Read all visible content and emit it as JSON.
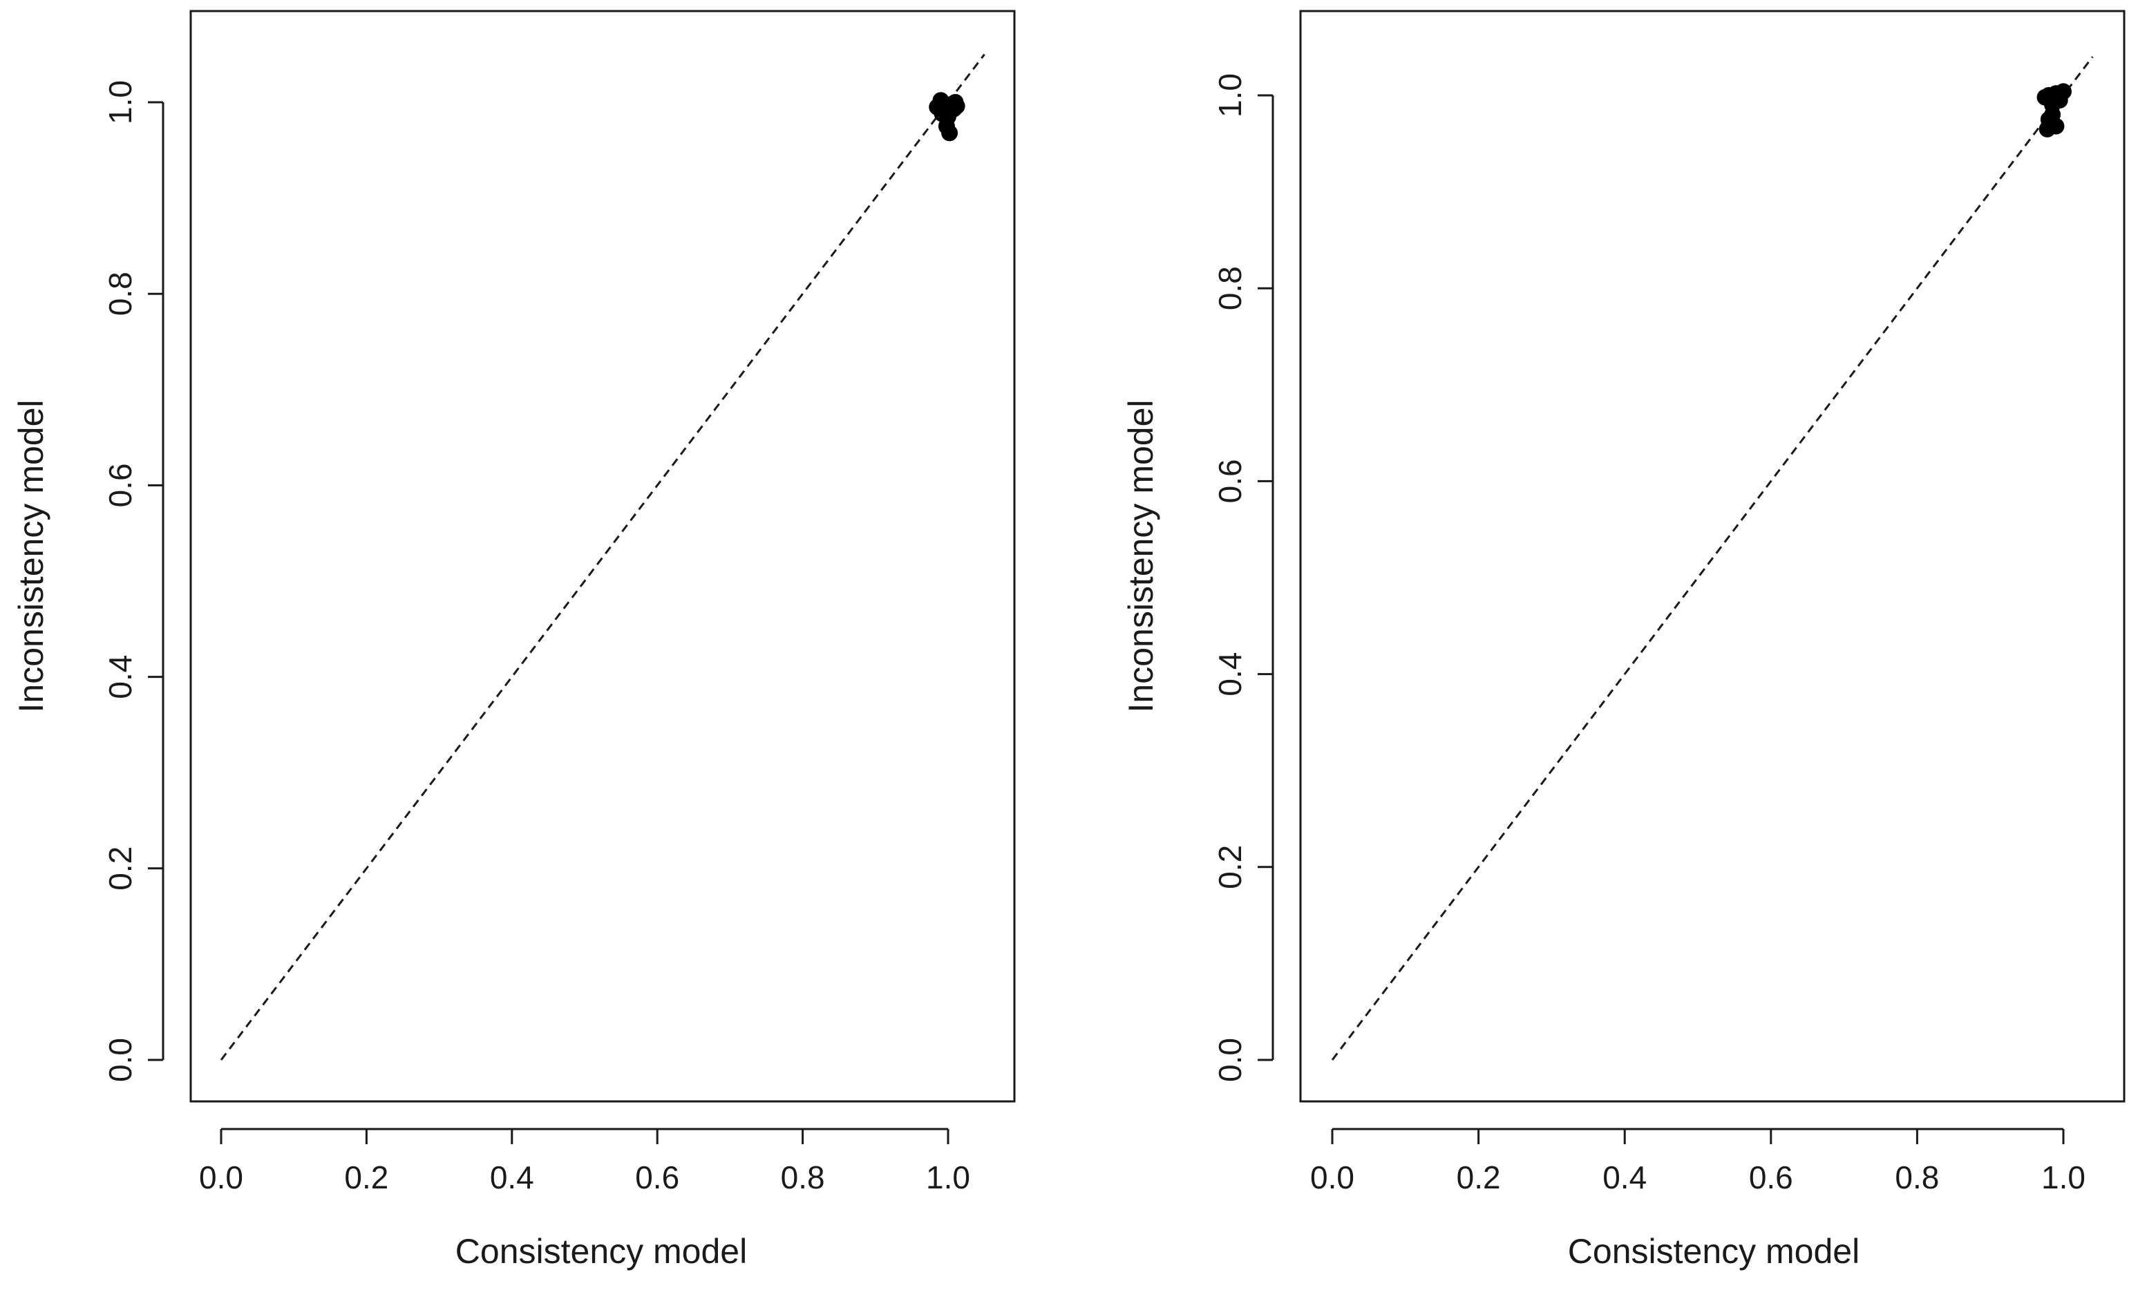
{
  "chart_data": [
    {
      "type": "scatter",
      "title": "",
      "xlabel": "Consistency model",
      "ylabel": "Inconsistency model",
      "xlim": [
        0.0,
        1.0
      ],
      "ylim": [
        0.0,
        1.0
      ],
      "xticks": [
        "0.0",
        "0.2",
        "0.4",
        "0.6",
        "0.8",
        "1.0"
      ],
      "yticks": [
        "0.0",
        "0.2",
        "0.4",
        "0.6",
        "0.8",
        "1.0"
      ],
      "grid": false,
      "reference_line": {
        "type": "identity",
        "style": "dashed",
        "from": [
          0.0,
          0.0
        ],
        "to": [
          1.05,
          1.05
        ]
      },
      "series": [
        {
          "points": [
            {
              "x": 0.985,
              "y": 0.995
            },
            {
              "x": 0.99,
              "y": 1.002
            },
            {
              "x": 0.995,
              "y": 0.99
            },
            {
              "x": 1.0,
              "y": 0.985
            },
            {
              "x": 1.005,
              "y": 0.998
            },
            {
              "x": 1.01,
              "y": 1.0
            },
            {
              "x": 1.008,
              "y": 0.993
            },
            {
              "x": 0.998,
              "y": 0.975
            },
            {
              "x": 1.002,
              "y": 0.968
            },
            {
              "x": 0.992,
              "y": 0.988
            },
            {
              "x": 1.012,
              "y": 0.996
            }
          ]
        }
      ]
    },
    {
      "type": "scatter",
      "title": "",
      "xlabel": "Consistency model",
      "ylabel": "Inconsistency model",
      "xlim": [
        0.0,
        1.0
      ],
      "ylim": [
        0.0,
        1.0
      ],
      "xticks": [
        "0.0",
        "0.2",
        "0.4",
        "0.6",
        "0.8",
        "1.0"
      ],
      "yticks": [
        "0.0",
        "0.2",
        "0.4",
        "0.6",
        "0.8",
        "1.0"
      ],
      "grid": false,
      "reference_line": {
        "type": "identity",
        "style": "dashed",
        "from": [
          0.0,
          0.0
        ],
        "to": [
          1.04,
          1.04
        ]
      },
      "series": [
        {
          "points": [
            {
              "x": 0.975,
              "y": 0.998
            },
            {
              "x": 0.98,
              "y": 1.0
            },
            {
              "x": 0.99,
              "y": 1.002
            },
            {
              "x": 1.0,
              "y": 1.004
            },
            {
              "x": 0.985,
              "y": 0.99
            },
            {
              "x": 0.98,
              "y": 0.975
            },
            {
              "x": 0.99,
              "y": 0.968
            },
            {
              "x": 0.985,
              "y": 0.98
            },
            {
              "x": 0.995,
              "y": 0.995
            },
            {
              "x": 0.978,
              "y": 0.965
            }
          ]
        }
      ]
    }
  ]
}
